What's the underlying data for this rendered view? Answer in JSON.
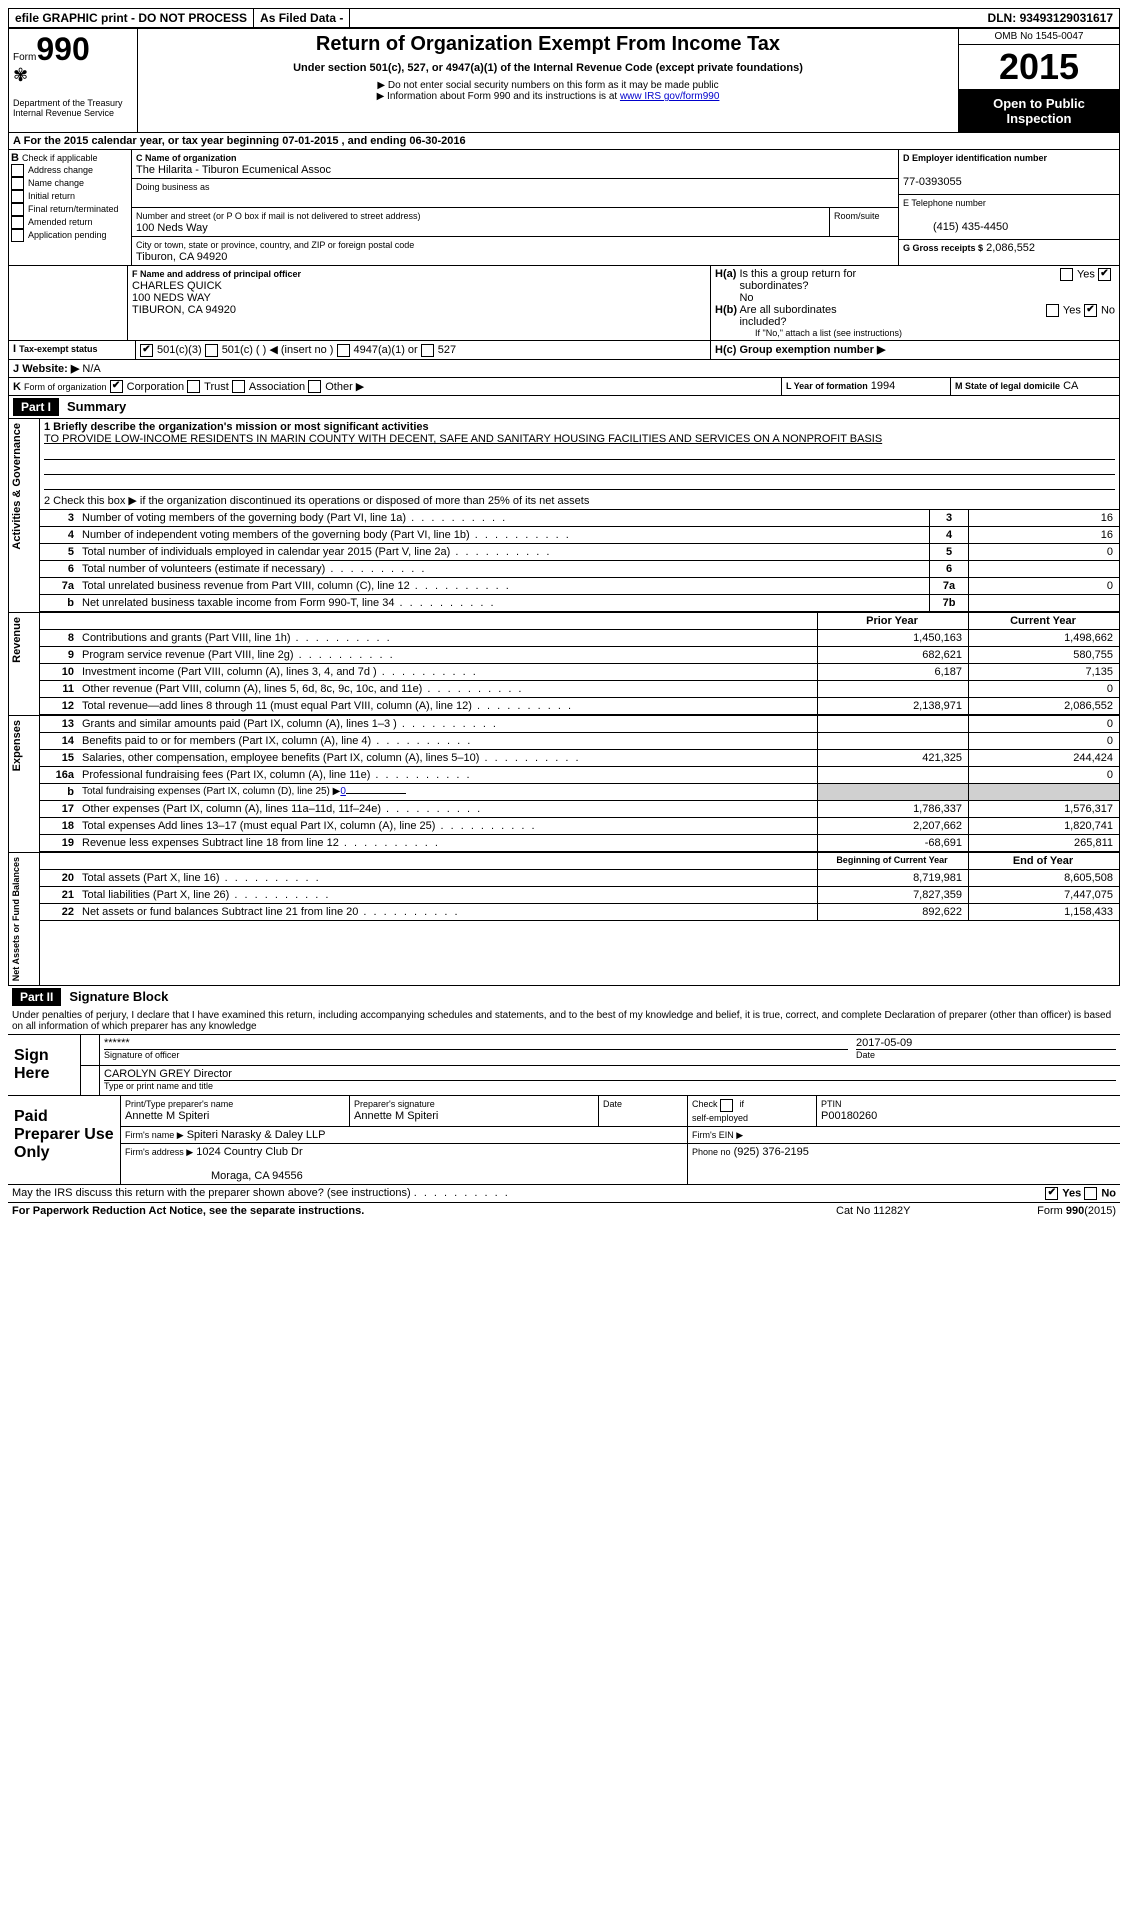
{
  "topbar": {
    "efile": "efile GRAPHIC print - DO NOT PROCESS",
    "asfiled": "As Filed Data -",
    "dln_label": "DLN:",
    "dln": "93493129031617"
  },
  "header": {
    "form_label": "Form",
    "form_num": "990",
    "dept": "Department of the Treasury",
    "irs": "Internal Revenue Service",
    "title": "Return of Organization Exempt From Income Tax",
    "sub1": "Under section 501(c), 527, or 4947(a)(1) of the Internal Revenue Code (except private foundations)",
    "sub2": "▶ Do not enter social security numbers on this form as it may be made public",
    "sub3": "▶ Information about Form 990 and its instructions is at ",
    "sub3_link": "www IRS gov/form990",
    "omb": "OMB No 1545-0047",
    "year": "2015",
    "open": "Open to Public Inspection"
  },
  "A": {
    "text": "For the 2015 calendar year, or tax year beginning 07-01-2015",
    "text2": ", and ending 06-30-2016"
  },
  "B": {
    "label": "Check if applicable",
    "items": [
      "Address change",
      "Name change",
      "Initial return",
      "Final return/terminated",
      "Amended return",
      "Application pending"
    ]
  },
  "C": {
    "name_label": "C Name of organization",
    "name": "The Hilarita - Tiburon Ecumenical Assoc",
    "dba_label": "Doing business as",
    "addr_label": "Number and street (or P O box if mail is not delivered to street address)",
    "room_label": "Room/suite",
    "addr": "100 Neds Way",
    "city_label": "City or town, state or province, country, and ZIP or foreign postal code",
    "city": "Tiburon, CA  94920"
  },
  "D": {
    "label": "D Employer identification number",
    "value": "77-0393055"
  },
  "E": {
    "label": "E Telephone number",
    "value": "(415) 435-4450"
  },
  "G": {
    "label": "G Gross receipts $",
    "value": "2,086,552"
  },
  "F": {
    "label": "F Name and address of principal officer",
    "name": "CHARLES QUICK",
    "addr1": "100 NEDS WAY",
    "addr2": "TIBURON, CA  94920"
  },
  "H": {
    "a_label": "H(a)  Is this a group return for subordinates?",
    "a_no": "No",
    "b_label": "H(b)  Are all subordinates included?",
    "b_note": "If \"No,\" attach a list  (see instructions)",
    "c_label": "H(c)  Group exemption number ▶"
  },
  "I": {
    "label": "Tax-exempt status",
    "opts": [
      "501(c)(3)",
      "501(c) (  ) ◀ (insert no )",
      "4947(a)(1) or",
      "527"
    ]
  },
  "J": {
    "label": "Website: ▶",
    "value": "N/A"
  },
  "K": {
    "label": "Form of organization",
    "opts": [
      "Corporation",
      "Trust",
      "Association",
      "Other ▶"
    ]
  },
  "L": {
    "label": "L Year of formation",
    "value": "1994"
  },
  "M": {
    "label": "M State of legal domicile",
    "value": "CA"
  },
  "part1": {
    "hdr": "Part I",
    "title": "Summary",
    "line1_label": "1 Briefly describe the organization's mission or most significant activities",
    "line1_text": "TO PROVIDE LOW-INCOME RESIDENTS IN MARIN COUNTY WITH DECENT, SAFE AND SANITARY HOUSING FACILITIES AND SERVICES ON A NONPROFIT BASIS",
    "line2": "2  Check this box ▶    if the organization discontinued its operations or disposed of more than 25% of its net assets",
    "gov_label": "Activities & Governance",
    "rev_label": "Revenue",
    "exp_label": "Expenses",
    "net_label": "Net Assets or Fund Balances",
    "rows_gov": [
      {
        "n": "3",
        "t": "Number of voting members of the governing body (Part VI, line 1a)",
        "k": "3",
        "v": "16"
      },
      {
        "n": "4",
        "t": "Number of independent voting members of the governing body (Part VI, line 1b)",
        "k": "4",
        "v": "16"
      },
      {
        "n": "5",
        "t": "Total number of individuals employed in calendar year 2015 (Part V, line 2a)",
        "k": "5",
        "v": "0"
      },
      {
        "n": "6",
        "t": "Total number of volunteers (estimate if necessary)",
        "k": "6",
        "v": ""
      },
      {
        "n": "7a",
        "t": "Total unrelated business revenue from Part VIII, column (C), line 12",
        "k": "7a",
        "v": "0"
      },
      {
        "n": "b",
        "t": "Net unrelated business taxable income from Form 990-T, line 34",
        "k": "7b",
        "v": ""
      }
    ],
    "col_prior": "Prior Year",
    "col_curr": "Current Year",
    "rows_rev": [
      {
        "n": "8",
        "t": "Contributions and grants (Part VIII, line 1h)",
        "p": "1,450,163",
        "c": "1,498,662"
      },
      {
        "n": "9",
        "t": "Program service revenue (Part VIII, line 2g)",
        "p": "682,621",
        "c": "580,755"
      },
      {
        "n": "10",
        "t": "Investment income (Part VIII, column (A), lines 3, 4, and 7d )",
        "p": "6,187",
        "c": "7,135"
      },
      {
        "n": "11",
        "t": "Other revenue (Part VIII, column (A), lines 5, 6d, 8c, 9c, 10c, and 11e)",
        "p": "",
        "c": "0"
      },
      {
        "n": "12",
        "t": "Total revenue—add lines 8 through 11 (must equal Part VIII, column (A), line 12)",
        "p": "2,138,971",
        "c": "2,086,552"
      }
    ],
    "rows_exp": [
      {
        "n": "13",
        "t": "Grants and similar amounts paid (Part IX, column (A), lines 1–3 )",
        "p": "",
        "c": "0"
      },
      {
        "n": "14",
        "t": "Benefits paid to or for members (Part IX, column (A), line 4)",
        "p": "",
        "c": "0"
      },
      {
        "n": "15",
        "t": "Salaries, other compensation, employee benefits (Part IX, column (A), lines 5–10)",
        "p": "421,325",
        "c": "244,424"
      },
      {
        "n": "16a",
        "t": "Professional fundraising fees (Part IX, column (A), line 11e)",
        "p": "",
        "c": "0"
      },
      {
        "n": "b",
        "t": "Total fundraising expenses (Part IX, column (D), line 25) ▶",
        "p": "grey",
        "c": "grey",
        "extra": "0"
      },
      {
        "n": "17",
        "t": "Other expenses (Part IX, column (A), lines 11a–11d, 11f–24e)",
        "p": "1,786,337",
        "c": "1,576,317"
      },
      {
        "n": "18",
        "t": "Total expenses  Add lines 13–17 (must equal Part IX, column (A), line 25)",
        "p": "2,207,662",
        "c": "1,820,741"
      },
      {
        "n": "19",
        "t": "Revenue less expenses  Subtract line 18 from line 12",
        "p": "-68,691",
        "c": "265,811"
      }
    ],
    "col_boy": "Beginning of Current Year",
    "col_eoy": "End of Year",
    "rows_net": [
      {
        "n": "20",
        "t": "Total assets (Part X, line 16)",
        "p": "8,719,981",
        "c": "8,605,508"
      },
      {
        "n": "21",
        "t": "Total liabilities (Part X, line 26)",
        "p": "7,827,359",
        "c": "7,447,075"
      },
      {
        "n": "22",
        "t": "Net assets or fund balances  Subtract line 21 from line 20",
        "p": "892,622",
        "c": "1,158,433"
      }
    ]
  },
  "part2": {
    "hdr": "Part II",
    "title": "Signature Block",
    "decl": "Under penalties of perjury, I declare that I have examined this return, including accompanying schedules and statements, and to the best of my knowledge and belief, it is true, correct, and complete  Declaration of preparer (other than officer) is based on all information of which preparer has any knowledge",
    "sign_here": "Sign Here",
    "sig_stars": "******",
    "sig_label": "Signature of officer",
    "sig_date": "2017-05-09",
    "date_label": "Date",
    "name_title": "CAROLYN GREY Director",
    "name_title_label": "Type or print name and title",
    "paid": "Paid Preparer Use Only",
    "prep_name_label": "Print/Type preparer's name",
    "prep_name": "Annette M Spiteri",
    "prep_sig_label": "Preparer's signature",
    "prep_sig": "Annette M Spiteri",
    "prep_date_label": "Date",
    "check_if": "Check        if self-employed",
    "ptin_label": "PTIN",
    "ptin": "P00180260",
    "firm_name_label": "Firm's name      ▶",
    "firm_name": "Spiteri Narasky & Daley LLP",
    "firm_ein_label": "Firm's EIN ▶",
    "firm_addr_label": "Firm's address ▶",
    "firm_addr1": "1024 Country Club Dr",
    "firm_addr2": "Moraga, CA  94556",
    "phone_label": "Phone no",
    "phone": "(925) 376-2195",
    "discuss": "May the IRS discuss this return with the preparer shown above? (see instructions)",
    "yes": "Yes",
    "no": "No"
  },
  "footer": {
    "paperwork": "For Paperwork Reduction Act Notice, see the separate instructions.",
    "cat": "Cat No  11282Y",
    "form": "Form",
    "formnum": "990",
    "formyear": "(2015)"
  }
}
